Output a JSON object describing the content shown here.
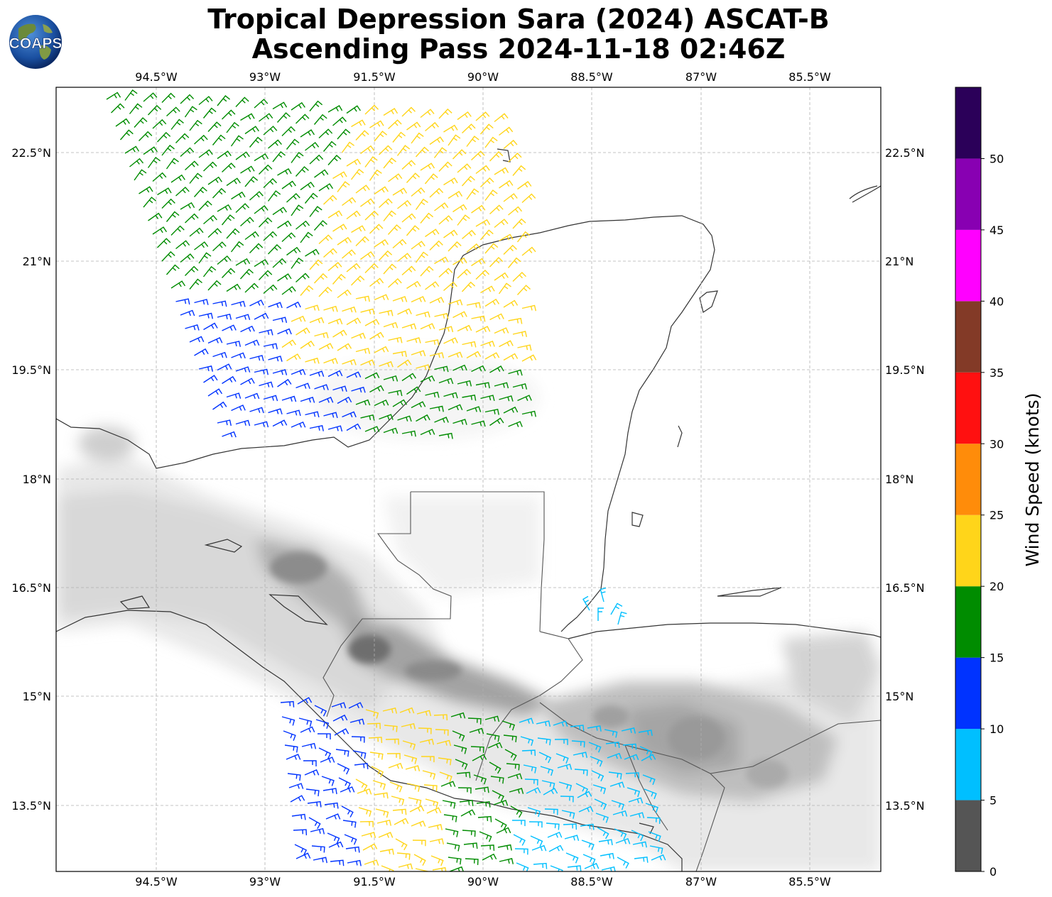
{
  "title": {
    "line1": "Tropical Depression Sara (2024) ASCAT-B",
    "line2": "Ascending Pass 2024-11-18 02:46Z"
  },
  "logo": {
    "text": "COAPS",
    "icon": "globe-icon"
  },
  "map": {
    "lon_range": [
      -96.0,
      -84.5
    ],
    "lat_range": [
      12.3,
      23.4
    ],
    "lon_ticks": [
      "94.5°W",
      "93°W",
      "91.5°W",
      "90°W",
      "88.5°W",
      "87°W",
      "85.5°W"
    ],
    "lat_ticks": [
      "22.5°N",
      "21°N",
      "19.5°N",
      "18°N",
      "16.5°N",
      "15°N",
      "13.5°N"
    ],
    "gridlines": true,
    "layers": [
      "terrain-shading",
      "coastlines",
      "borders",
      "wind-barbs"
    ]
  },
  "colorbar": {
    "label": "Wind Speed (knots)",
    "tick_labels": [
      "0",
      "5",
      "10",
      "15",
      "20",
      "25",
      "30",
      "35",
      "40",
      "45",
      "50"
    ],
    "bins": [
      {
        "min": 0,
        "max": 5,
        "color": "#555555"
      },
      {
        "min": 5,
        "max": 10,
        "color": "#00bfff"
      },
      {
        "min": 10,
        "max": 15,
        "color": "#0033ff"
      },
      {
        "min": 15,
        "max": 20,
        "color": "#008c00"
      },
      {
        "min": 20,
        "max": 25,
        "color": "#ffd51a"
      },
      {
        "min": 25,
        "max": 30,
        "color": "#ff8c0a"
      },
      {
        "min": 30,
        "max": 35,
        "color": "#ff1010"
      },
      {
        "min": 35,
        "max": 40,
        "color": "#833a27"
      },
      {
        "min": 40,
        "max": 45,
        "color": "#ff00ff"
      },
      {
        "min": 45,
        "max": 50,
        "color": "#8800b2"
      },
      {
        "min": 50,
        "max": 55,
        "color": "#2b0059"
      }
    ]
  }
}
